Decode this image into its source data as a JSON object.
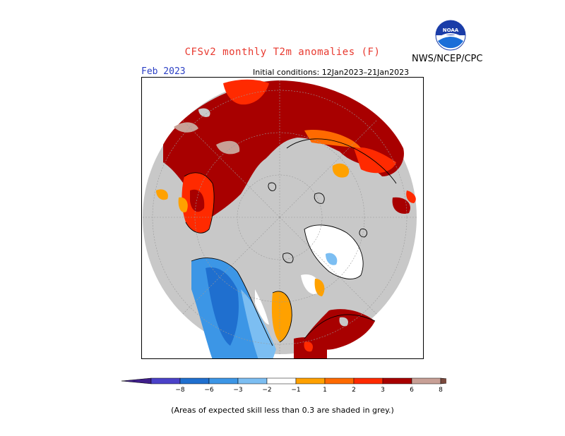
{
  "header": {
    "title": "CFSv2 monthly T2m anomalies (F)",
    "agency": "NWS/NCEP/CPC",
    "logo_text": "NOAA"
  },
  "map": {
    "month_label": "Feb 2023",
    "initial_conditions": "Initial conditions: 12Jan2023–21Jan2023",
    "projection": "north-polar-stereographic",
    "background_color": "#c8c8c8"
  },
  "legend": {
    "ticks": [
      "−8",
      "−6",
      "−3",
      "−2",
      "−1",
      "1",
      "2",
      "3",
      "6",
      "8"
    ],
    "colors": {
      "lt_m8": "#3f1f8a",
      "m8_m6": "#4b42c9",
      "m6_m3": "#1f6fcf",
      "m3_m2": "#3c96e6",
      "m2_m1": "#7cbef2",
      "m1_1": "#ffffff",
      "1_2": "#ffa100",
      "2_3": "#ff6a00",
      "3_6": "#ff2a00",
      "6_8": "#a80000",
      "8_plus": "#c8a096",
      "gt_8": "#7a4a3e"
    }
  },
  "footnote": "(Areas of expected skill less than 0.3 are shaded in grey.)"
}
